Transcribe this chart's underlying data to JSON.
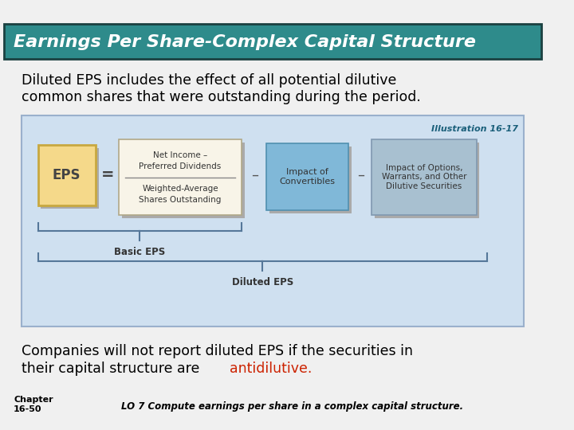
{
  "title": "Earnings Per Share-Complex Capital Structure",
  "title_bg": "#2e8b8b",
  "title_color": "white",
  "body_bg": "#f0f0f0",
  "line1": "Diluted EPS includes the effect of all potential dilutive",
  "line2": "common shares that were outstanding during the period.",
  "illustration_label": "Illustration 16-17",
  "illustration_color": "#1a5f7a",
  "diagram_bg": "#cfe0f0",
  "diagram_border": "#9ab0cc",
  "eps_box_color": "#f5d98a",
  "eps_box_border": "#c8a840",
  "fraction_box_color": "#f8f4e8",
  "fraction_box_border": "#b0a888",
  "convertibles_box_color": "#80b8d8",
  "convertibles_box_border": "#5090b0",
  "options_box_color": "#a8c0d0",
  "options_box_border": "#8098b0",
  "eps_text": "EPS",
  "fraction_top": "Net Income –",
  "fraction_top2": "Preferred Dividends",
  "fraction_bottom": "Weighted-Average",
  "fraction_bottom2": "Shares Outstanding",
  "convertibles_text": "Impact of\nConvertibles",
  "options_text": "Impact of Options,\nWarrants, and Other\nDilutive Securities",
  "basic_eps_label": "Basic EPS",
  "diluted_eps_label": "Diluted EPS",
  "bottom_text1": "Companies will not report diluted EPS if the securities in",
  "bottom_text2": "their capital structure are ",
  "bottom_highlight": "antidilutive.",
  "highlight_color": "#cc2200",
  "chapter_text": "Chapter\n16-50",
  "lo_text": "LO 7 Compute earnings per share in a complex capital structure.",
  "brace_color": "#557799"
}
